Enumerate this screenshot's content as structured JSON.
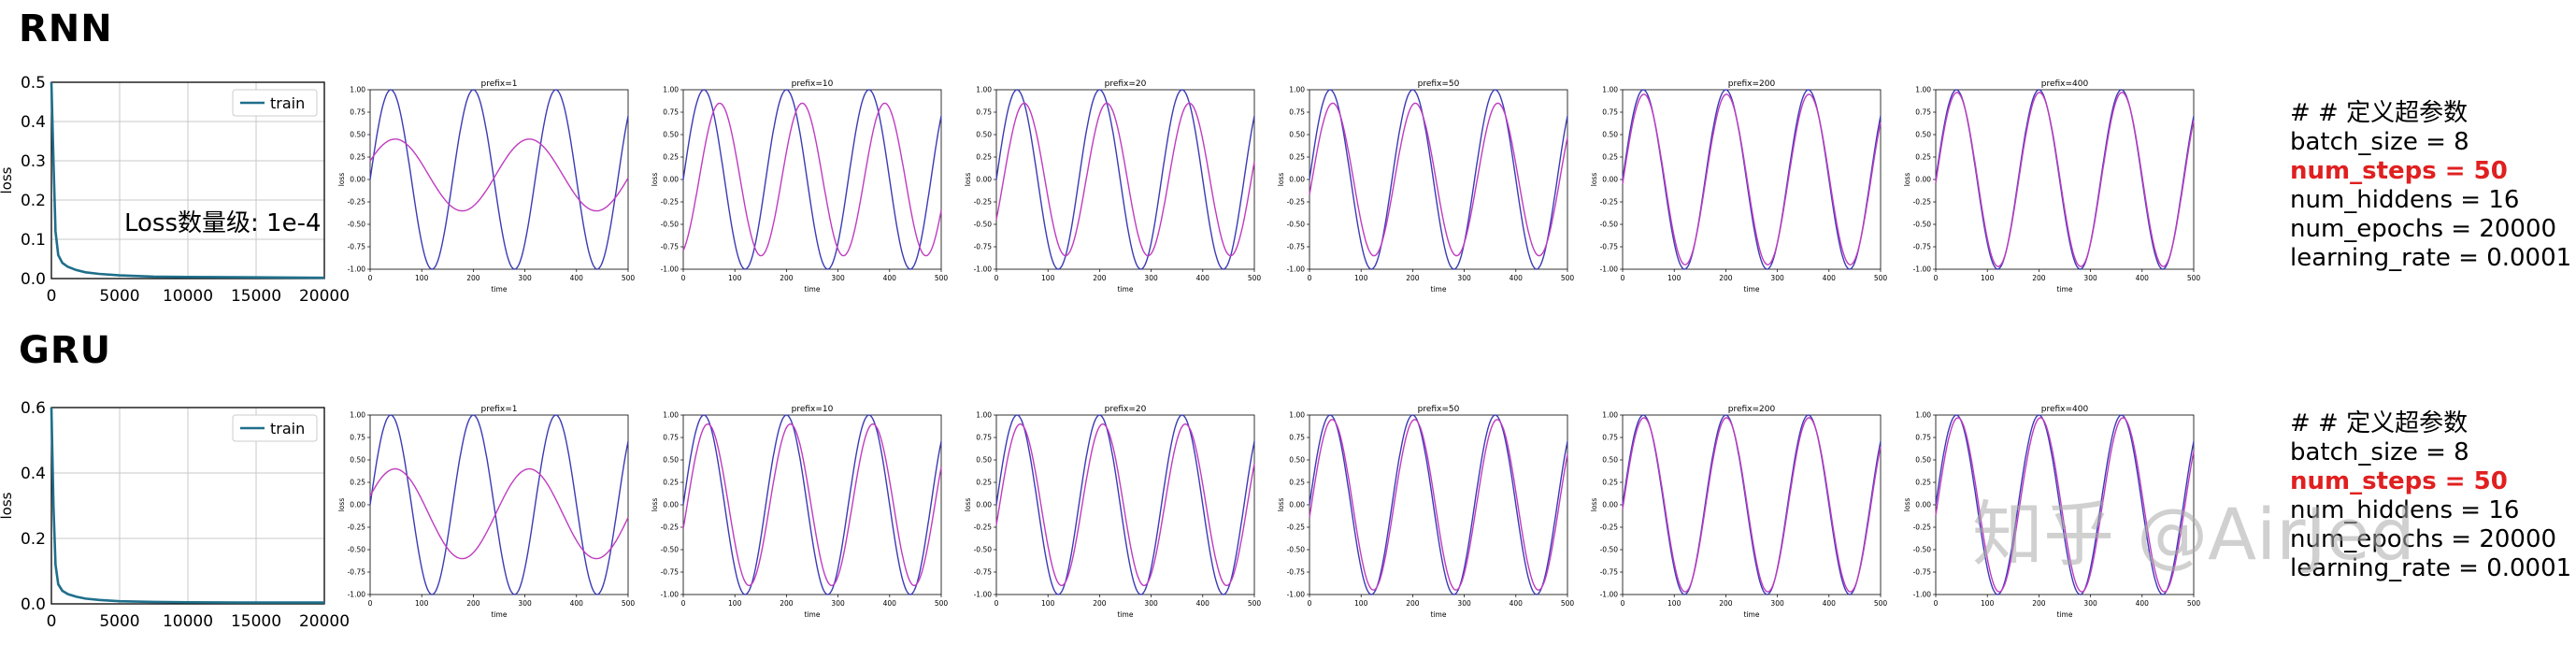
{
  "rnn": {
    "title": "RNN",
    "annotation": "Loss数量级: 1e-4",
    "params": [
      "# # 定义超参数",
      "batch_size = 8",
      "num_steps = 50",
      "num_hiddens = 16",
      "num_epochs = 20000",
      "learning_rate = 0.0001"
    ],
    "highlight_index": 2
  },
  "gru": {
    "title": "GRU",
    "params": [
      "# # 定义超参数",
      "batch_size = 8",
      "num_steps = 50",
      "num_hiddens = 16",
      "num_epochs = 20000",
      "learning_rate = 0.0001"
    ],
    "highlight_index": 2
  },
  "watermark": "知乎 @AirJed",
  "colors": {
    "loss": "#1f6f8b",
    "target": "#3b3bb5",
    "pred": "#c03cc0"
  },
  "chart_data": [
    {
      "type": "line",
      "group": "rnn",
      "kind": "loss",
      "legend": "train",
      "xlim": [
        0,
        20000
      ],
      "ylim": [
        0,
        0.5
      ],
      "xticks": [
        "0",
        "5000",
        "10000",
        "15000",
        "20000"
      ],
      "yticks": [
        "0.0",
        "0.1",
        "0.2",
        "0.3",
        "0.4",
        "0.5"
      ],
      "ylabel": "loss",
      "x": [
        0,
        150,
        300,
        500,
        800,
        1200,
        1800,
        2500,
        3500,
        5000,
        7500,
        10000,
        15000,
        20000
      ],
      "y": [
        0.5,
        0.3,
        0.12,
        0.06,
        0.04,
        0.03,
        0.022,
        0.016,
        0.012,
        0.008,
        0.005,
        0.004,
        0.003,
        0.002
      ]
    },
    {
      "type": "line",
      "group": "rnn",
      "kind": "pred",
      "title": "prefix=1",
      "prefix": 1,
      "mode": "osc",
      "amp": 0.4,
      "offset": 0.05
    },
    {
      "type": "line",
      "group": "rnn",
      "kind": "pred",
      "title": "prefix=10",
      "prefix": 10,
      "mode": "shift",
      "amp": 0.85,
      "phase": 1.2
    },
    {
      "type": "line",
      "group": "rnn",
      "kind": "pred",
      "title": "prefix=20",
      "prefix": 20,
      "mode": "shift",
      "amp": 0.85,
      "phase": 0.55
    },
    {
      "type": "line",
      "group": "rnn",
      "kind": "pred",
      "title": "prefix=50",
      "prefix": 50,
      "mode": "shift",
      "amp": 0.85,
      "phase": 0.2
    },
    {
      "type": "line",
      "group": "rnn",
      "kind": "pred",
      "title": "prefix=200",
      "prefix": 200,
      "mode": "shift",
      "amp": 0.95,
      "phase": 0.05
    },
    {
      "type": "line",
      "group": "rnn",
      "kind": "pred",
      "title": "prefix=400",
      "prefix": 400,
      "mode": "shift",
      "amp": 0.97,
      "phase": 0.04
    },
    {
      "type": "line",
      "group": "gru",
      "kind": "loss",
      "legend": "train",
      "xlim": [
        0,
        20000
      ],
      "ylim": [
        0,
        0.6
      ],
      "xticks": [
        "0",
        "5000",
        "10000",
        "15000",
        "20000"
      ],
      "yticks": [
        "0.0",
        "0.2",
        "0.4",
        "0.6"
      ],
      "ylabel": "loss",
      "x": [
        0,
        150,
        300,
        500,
        800,
        1200,
        1800,
        2500,
        3500,
        5000,
        7500,
        10000,
        15000,
        20000
      ],
      "y": [
        0.6,
        0.3,
        0.12,
        0.06,
        0.04,
        0.03,
        0.022,
        0.016,
        0.012,
        0.008,
        0.006,
        0.005,
        0.004,
        0.004
      ]
    },
    {
      "type": "line",
      "group": "gru",
      "kind": "pred",
      "title": "prefix=1",
      "prefix": 1,
      "mode": "osc",
      "amp": 0.5,
      "offset": -0.1
    },
    {
      "type": "line",
      "group": "gru",
      "kind": "pred",
      "title": "prefix=10",
      "prefix": 10,
      "mode": "shift",
      "amp": 0.9,
      "phase": 0.3
    },
    {
      "type": "line",
      "group": "gru",
      "kind": "pred",
      "title": "prefix=20",
      "prefix": 20,
      "mode": "shift",
      "amp": 0.9,
      "phase": 0.25
    },
    {
      "type": "line",
      "group": "gru",
      "kind": "pred",
      "title": "prefix=50",
      "prefix": 50,
      "mode": "shift",
      "amp": 0.95,
      "phase": 0.15
    },
    {
      "type": "line",
      "group": "gru",
      "kind": "pred",
      "title": "prefix=200",
      "prefix": 200,
      "mode": "shift",
      "amp": 0.97,
      "phase": 0.05
    },
    {
      "type": "line",
      "group": "gru",
      "kind": "pred",
      "title": "prefix=400",
      "prefix": 400,
      "mode": "shift",
      "amp": 0.97,
      "phase": 0.12
    }
  ],
  "pred_axes": {
    "xlabel": "time",
    "ylabel": "loss",
    "xlim": [
      0,
      500
    ],
    "ylim": [
      -1.0,
      1.0
    ],
    "xticks": [
      "0",
      "100",
      "200",
      "300",
      "400",
      "500"
    ],
    "yticks": [
      "-1.00",
      "-0.75",
      "-0.50",
      "-0.25",
      "0.00",
      "0.25",
      "0.50",
      "0.75",
      "1.00"
    ],
    "period": 160
  }
}
